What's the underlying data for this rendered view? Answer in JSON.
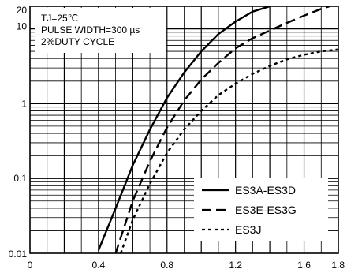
{
  "chart_data": {
    "type": "line",
    "x_scale": "linear",
    "y_scale": "log",
    "xlim": [
      0,
      1.8
    ],
    "ylim": [
      0.01,
      20
    ],
    "x_ticks": [
      0,
      0.4,
      0.8,
      1.2,
      1.6,
      1.8
    ],
    "x_tick_labels": [
      "0",
      "0.4",
      "0.8",
      "1.2",
      "1.6",
      "1.8"
    ],
    "y_tick_labels": [
      {
        "value": 0.01,
        "label": "0.01"
      },
      {
        "value": 0.1,
        "label": "0.1"
      },
      {
        "value": 1,
        "label": "1"
      },
      {
        "value": 10,
        "label": "10"
      },
      {
        "value": 20,
        "label": "20"
      }
    ],
    "grid": true,
    "conditions": {
      "line1": "TJ=25℃",
      "line2": "PULSE WIDTH=300 µs",
      "line3": "2%DUTY CYCLE"
    },
    "legend_position": "bottom-right",
    "series": [
      {
        "name": "ES3A-ES3D",
        "style": "solid",
        "points": [
          [
            0.4,
            0.011
          ],
          [
            0.5,
            0.04
          ],
          [
            0.6,
            0.15
          ],
          [
            0.7,
            0.45
          ],
          [
            0.8,
            1.2
          ],
          [
            0.9,
            2.6
          ],
          [
            1.0,
            5.0
          ],
          [
            1.1,
            8.5
          ],
          [
            1.2,
            12.5
          ],
          [
            1.3,
            17
          ],
          [
            1.4,
            20
          ]
        ]
      },
      {
        "name": "ES3E-ES3G",
        "style": "dashed",
        "points": [
          [
            0.5,
            0.01
          ],
          [
            0.6,
            0.05
          ],
          [
            0.7,
            0.17
          ],
          [
            0.8,
            0.48
          ],
          [
            0.9,
            1.1
          ],
          [
            1.0,
            2.1
          ],
          [
            1.1,
            3.5
          ],
          [
            1.2,
            5.5
          ],
          [
            1.3,
            7.5
          ],
          [
            1.4,
            9.5
          ],
          [
            1.5,
            12
          ],
          [
            1.6,
            15
          ],
          [
            1.7,
            18.5
          ],
          [
            1.75,
            20
          ]
        ]
      },
      {
        "name": "ES3J",
        "style": "dotted",
        "points": [
          [
            0.53,
            0.01
          ],
          [
            0.6,
            0.028
          ],
          [
            0.7,
            0.085
          ],
          [
            0.8,
            0.22
          ],
          [
            0.9,
            0.45
          ],
          [
            1.0,
            0.8
          ],
          [
            1.1,
            1.3
          ],
          [
            1.2,
            1.85
          ],
          [
            1.3,
            2.5
          ],
          [
            1.4,
            3.2
          ],
          [
            1.5,
            3.9
          ],
          [
            1.6,
            4.5
          ],
          [
            1.7,
            5.0
          ],
          [
            1.8,
            5.3
          ]
        ]
      }
    ]
  }
}
